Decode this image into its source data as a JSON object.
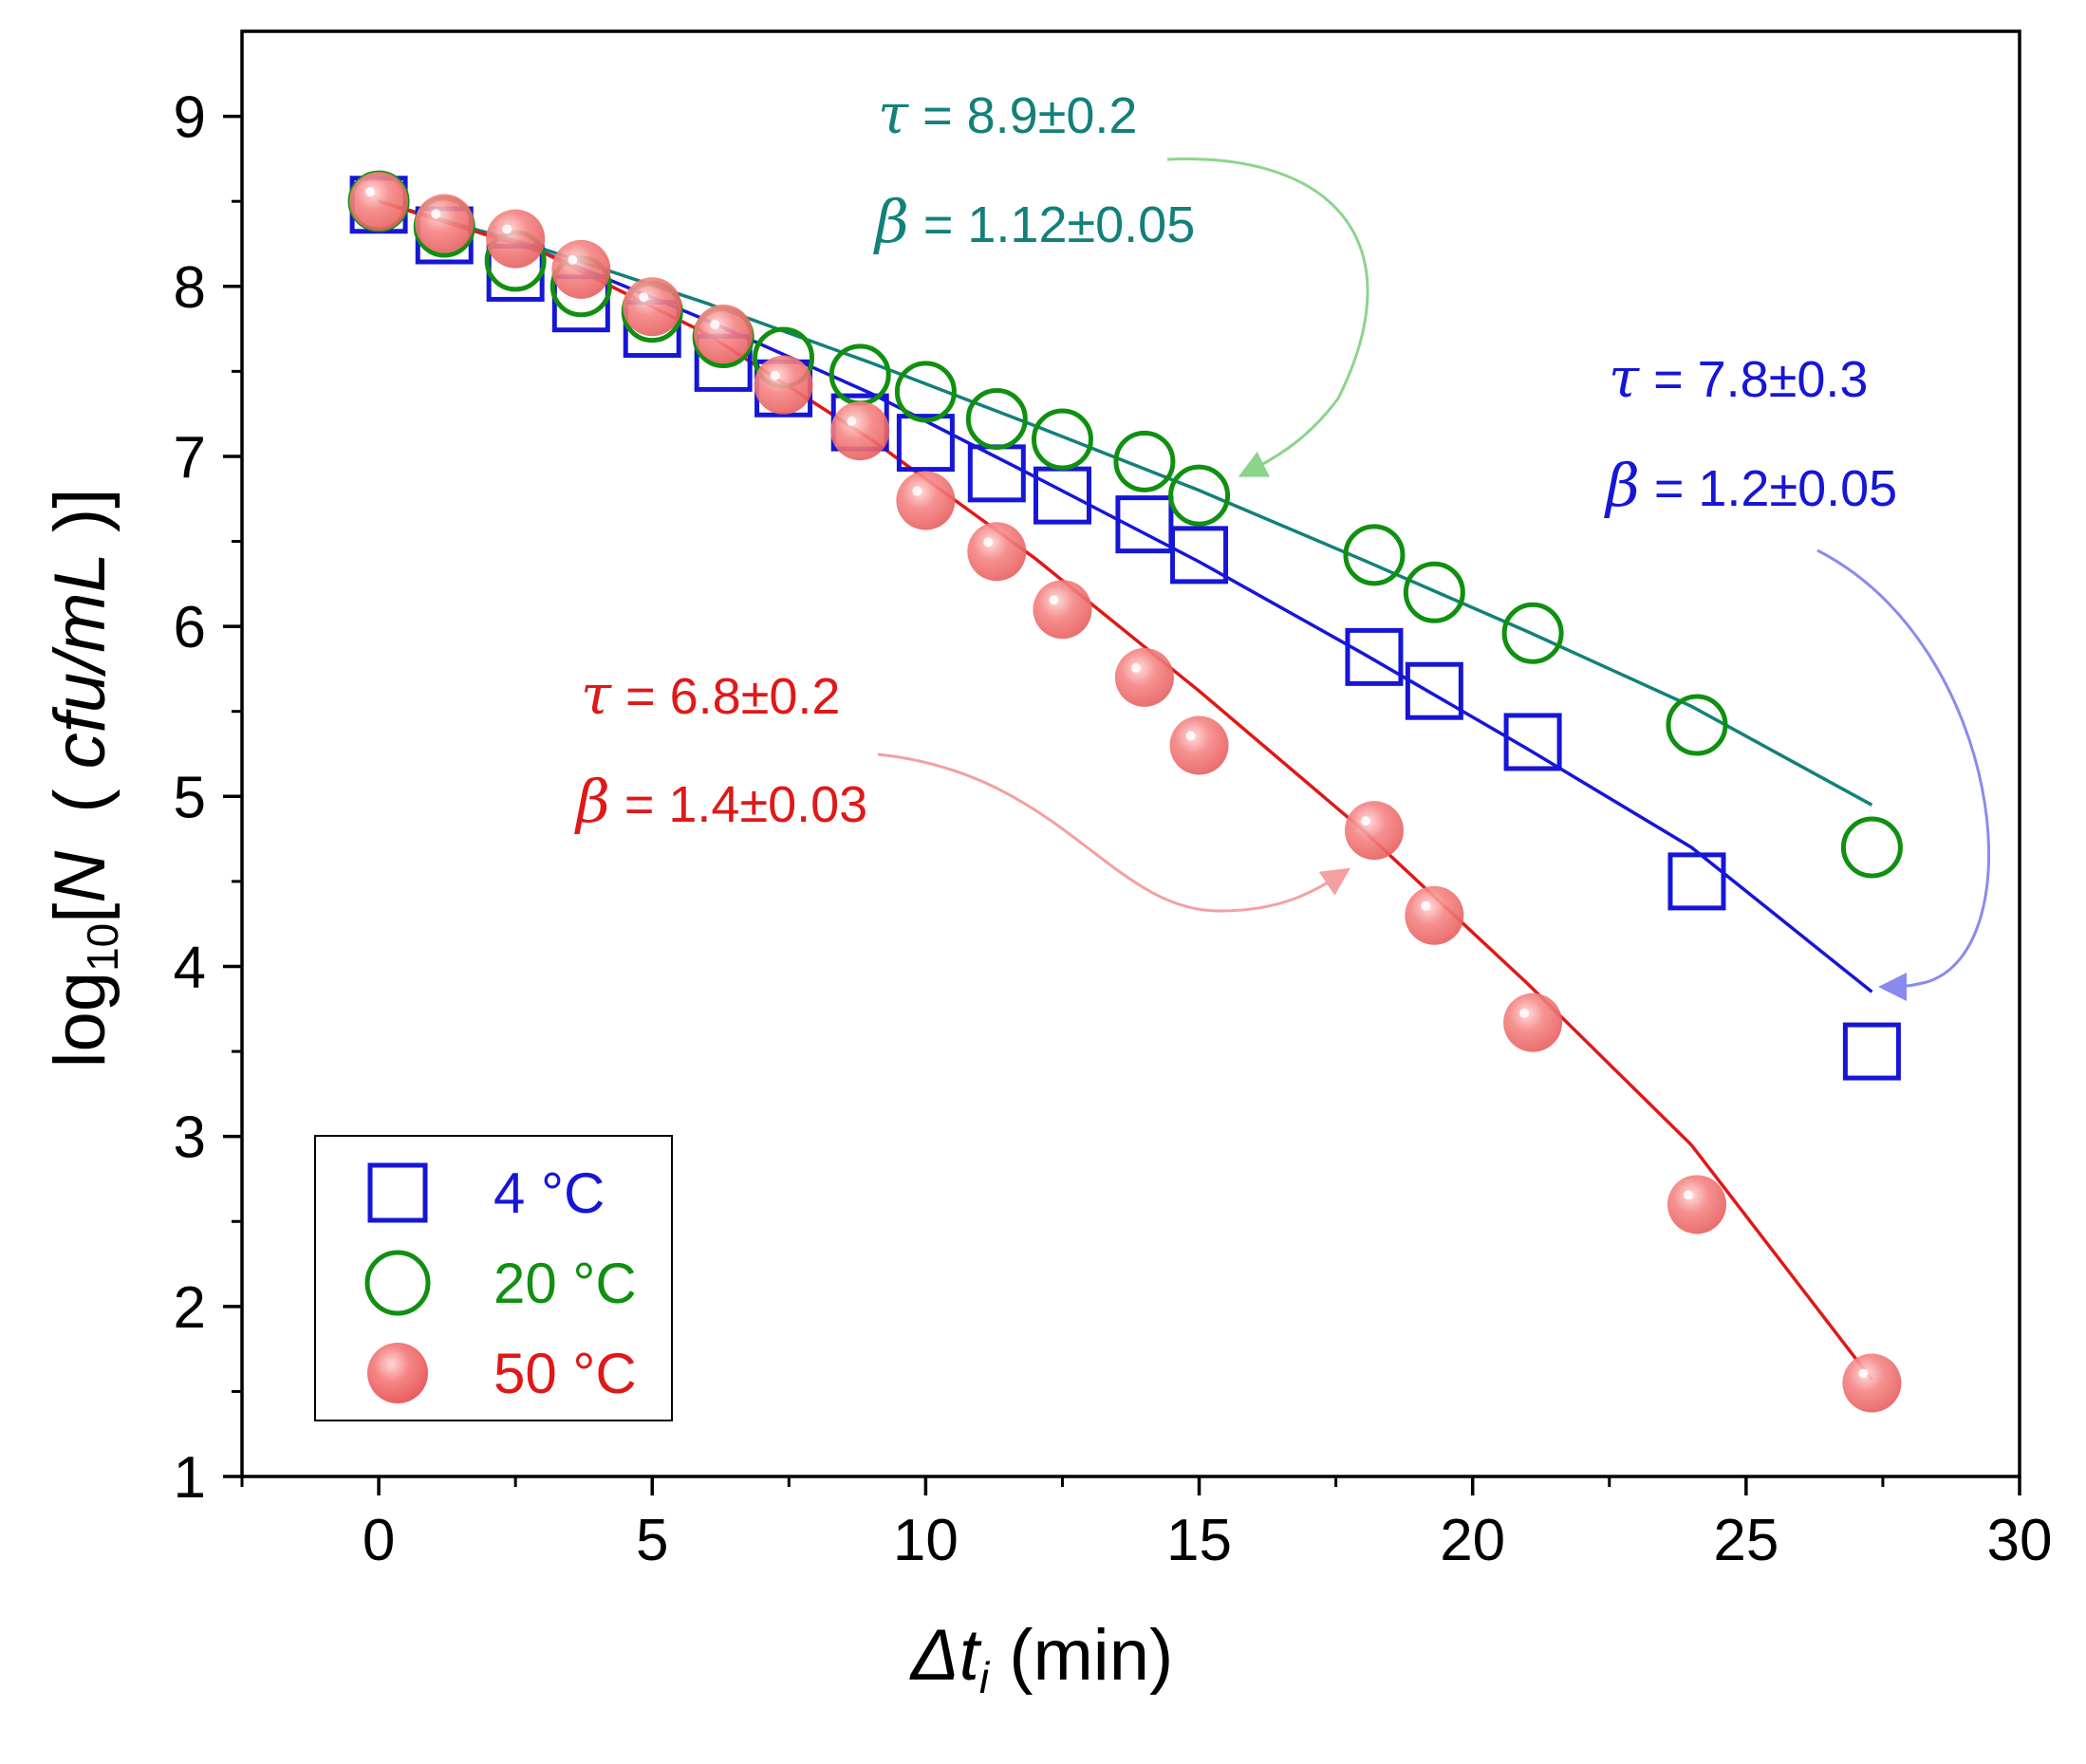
{
  "chart_data": {
    "type": "scatter",
    "title": "",
    "xlabel": {
      "delta": "Δ",
      "t": "t",
      "sub": "i",
      "unit": " (min)"
    },
    "ylabel": {
      "log": "log",
      "sub": "10",
      "open": "[",
      "n": "N",
      "paren_open": "( ",
      "unit": "cfu/mL",
      "paren_close": " )]"
    },
    "xlim": [
      -2.5,
      30
    ],
    "ylim": [
      1,
      9.5
    ],
    "xticks": [
      0,
      5,
      10,
      15,
      20,
      25,
      30
    ],
    "yticks": [
      1,
      2,
      3,
      4,
      5,
      6,
      7,
      8,
      9
    ],
    "grid": false,
    "legend_position": "bottom-left",
    "series": [
      {
        "name": "4 °C",
        "marker": "open-square",
        "color": "#1616d6",
        "x": [
          0,
          1.2,
          2.5,
          3.7,
          5,
          6.3,
          7.4,
          8.8,
          10,
          11.3,
          12.5,
          14,
          15,
          18.2,
          19.3,
          21.1,
          24.1,
          27.3
        ],
        "y": [
          8.48,
          8.3,
          8.08,
          7.9,
          7.75,
          7.55,
          7.4,
          7.2,
          7.08,
          6.9,
          6.77,
          6.6,
          6.42,
          5.82,
          5.62,
          5.32,
          4.5,
          3.5
        ]
      },
      {
        "name": "20 °C",
        "marker": "open-circle",
        "color": "#109010",
        "x": [
          0,
          1.2,
          2.5,
          3.7,
          5,
          6.3,
          7.4,
          8.8,
          10,
          11.3,
          12.5,
          14,
          15,
          18.2,
          19.3,
          21.1,
          24.1,
          27.3
        ],
        "y": [
          8.5,
          8.35,
          8.15,
          8.0,
          7.85,
          7.7,
          7.58,
          7.48,
          7.38,
          7.22,
          7.1,
          6.97,
          6.77,
          6.42,
          6.2,
          5.96,
          5.42,
          4.7
        ]
      },
      {
        "name": "50 °C",
        "marker": "filled-circle",
        "color": "#f07070",
        "x": [
          0,
          1.2,
          2.5,
          3.7,
          5,
          6.3,
          7.4,
          8.8,
          10,
          11.3,
          12.5,
          14,
          15,
          18.2,
          19.3,
          21.1,
          24.1,
          27.3
        ],
        "y": [
          8.5,
          8.37,
          8.28,
          8.1,
          7.88,
          7.72,
          7.42,
          7.15,
          6.74,
          6.44,
          6.1,
          5.7,
          5.3,
          4.8,
          4.3,
          3.67,
          2.6,
          1.55
        ]
      }
    ],
    "fit_lines": [
      {
        "name": "4 °C fit",
        "color": "#1616d6",
        "x": [
          0,
          3,
          6,
          9,
          12,
          15,
          18,
          21,
          24,
          27.3
        ],
        "y": [
          8.5,
          8.2,
          7.8,
          7.37,
          6.88,
          6.38,
          5.84,
          5.28,
          4.7,
          3.85
        ]
      },
      {
        "name": "20 °C fit",
        "color": "#13807a",
        "x": [
          0,
          3,
          6,
          9,
          12,
          15,
          18,
          21,
          24,
          27.3
        ],
        "y": [
          8.5,
          8.22,
          7.9,
          7.55,
          7.18,
          6.8,
          6.39,
          5.97,
          5.53,
          4.95
        ]
      },
      {
        "name": "50 °C fit",
        "color": "#e01818",
        "x": [
          0,
          3,
          6,
          9,
          12,
          15,
          18,
          21,
          24,
          27.3
        ],
        "y": [
          8.5,
          8.2,
          7.72,
          7.1,
          6.4,
          5.62,
          4.8,
          3.9,
          2.95,
          1.57
        ]
      }
    ],
    "annotations": [
      {
        "series": "20 °C",
        "color": "#13807a",
        "tau_symbol": "τ",
        "tau": " = 8.9±0.2",
        "beta_symbol": "β",
        "beta": " = 1.12±0.05"
      },
      {
        "series": "4 °C",
        "color": "#1616d6",
        "tau_symbol": "τ",
        "tau": " = 7.8±0.3",
        "beta_symbol": "β",
        "beta": " = 1.2±0.05"
      },
      {
        "series": "50 °C",
        "color": "#e01818",
        "tau_symbol": "τ",
        "tau": " = 6.8±0.2",
        "beta_symbol": "β",
        "beta": " = 1.4±0.03"
      }
    ],
    "legend": [
      {
        "label": "4 °C",
        "color": "#1616d6"
      },
      {
        "label": "20 °C",
        "color": "#109010"
      },
      {
        "label": "50 °C",
        "color": "#e01818"
      }
    ]
  }
}
